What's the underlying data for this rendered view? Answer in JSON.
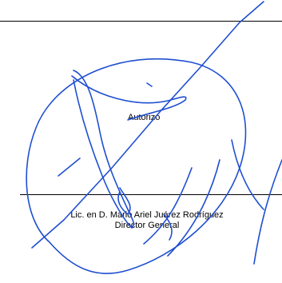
{
  "authorization": {
    "label": "Autorizó"
  },
  "signer": {
    "name": "Lic. en D. Mario Ariel Juárez Rodríguez",
    "title": "Director General"
  },
  "signature": {
    "ink_color": "#1f4fd1",
    "description": "handwritten-signature"
  }
}
